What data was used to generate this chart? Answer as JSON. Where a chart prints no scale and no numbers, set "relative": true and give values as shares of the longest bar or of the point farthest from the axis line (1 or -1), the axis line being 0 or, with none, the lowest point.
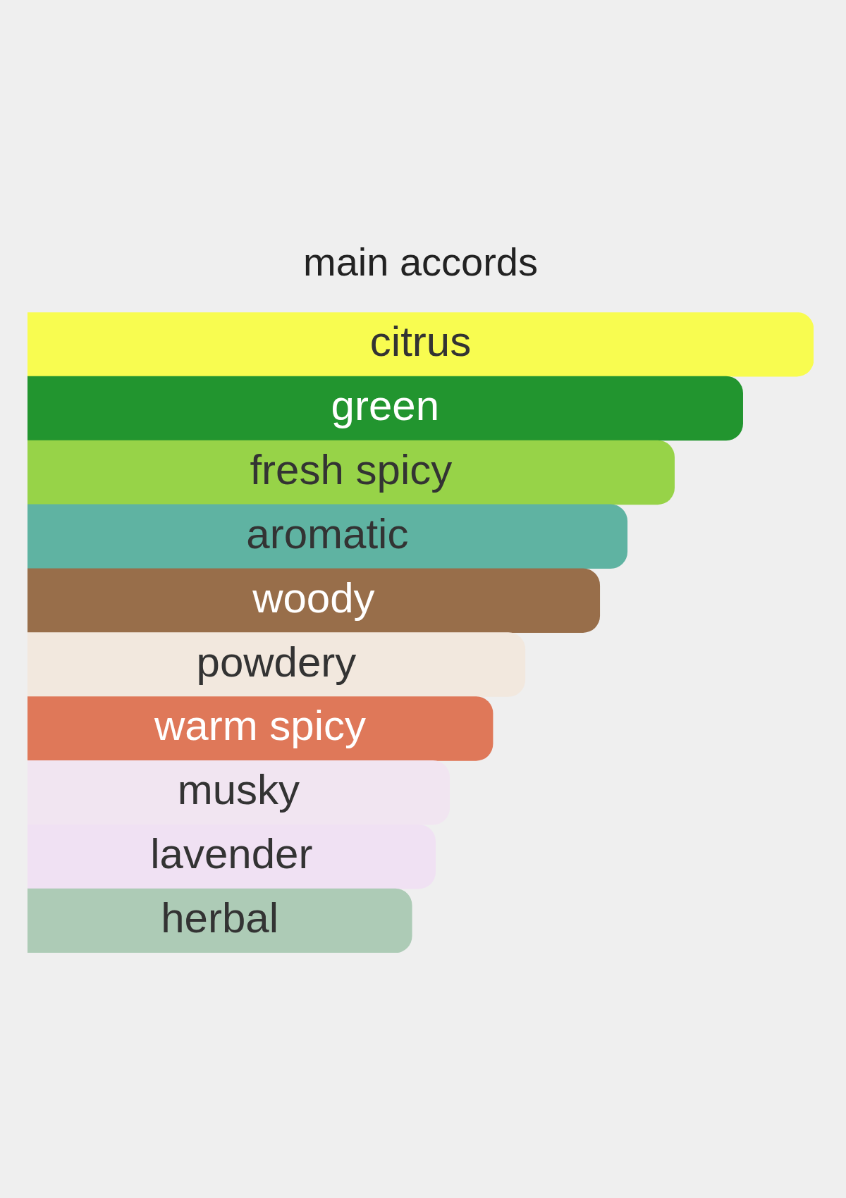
{
  "chart_data": {
    "type": "bar",
    "orientation": "horizontal",
    "relative": true,
    "title": "main accords",
    "categories": [
      "citrus",
      "green",
      "fresh spicy",
      "aromatic",
      "woody",
      "powdery",
      "warm spicy",
      "musky",
      "lavender",
      "herbal"
    ],
    "values": [
      1,
      0.91,
      0.823,
      0.763,
      0.728,
      0.633,
      0.592,
      0.537,
      0.519,
      0.489
    ],
    "colors": [
      "#f8fc50",
      "#22952f",
      "#97d348",
      "#5fb3a2",
      "#986e4a",
      "#f2e8de",
      "#df7859",
      "#f1e5f1",
      "#f0e1f3",
      "#adcbb6"
    ]
  }
}
